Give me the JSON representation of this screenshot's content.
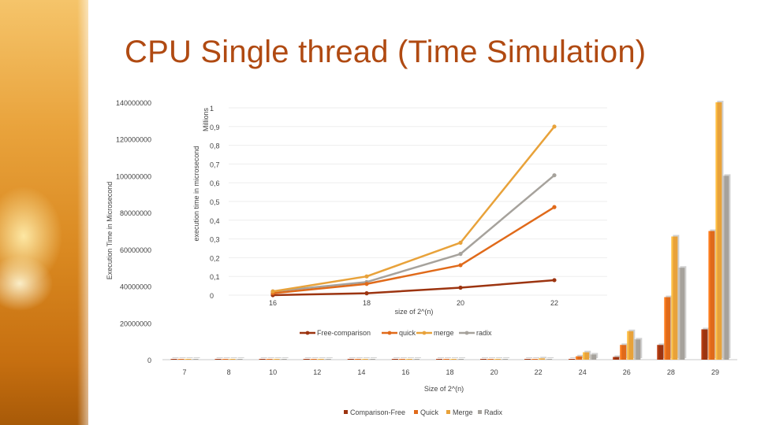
{
  "slide": {
    "title": "CPU Single thread (Time Simulation)"
  },
  "chart_data": [
    {
      "type": "bar",
      "title": "",
      "xlabel": "Size of 2^(n)",
      "ylabel": "Execution Time in Microsecond",
      "ylim": [
        0,
        140000000
      ],
      "yticks": [
        0,
        20000000,
        40000000,
        60000000,
        80000000,
        100000000,
        120000000,
        140000000
      ],
      "ytick_labels": [
        "0",
        "20000000",
        "40000000",
        "60000000",
        "80000000",
        "100000000",
        "120000000",
        "140000000"
      ],
      "categories": [
        "7",
        "8",
        "10",
        "12",
        "14",
        "16",
        "18",
        "20",
        "22",
        "24",
        "26",
        "28",
        "29"
      ],
      "grid": false,
      "legend_position": "bottom",
      "series": [
        {
          "name": "Comparison-Free",
          "color": "#9c3410",
          "values": [
            0,
            0,
            0,
            0,
            0,
            0,
            0,
            10000,
            60000,
            300000,
            1500000,
            8000000,
            16500000
          ]
        },
        {
          "name": "Quick",
          "color": "#e06a1a",
          "values": [
            0,
            0,
            0,
            0,
            0,
            0,
            10000,
            50000,
            200000,
            1800000,
            8000000,
            34000000,
            70000000
          ]
        },
        {
          "name": "Merge",
          "color": "#e8a23a",
          "values": [
            0,
            0,
            0,
            0,
            0,
            0,
            15000,
            90000,
            700000,
            4000000,
            15500000,
            67000000,
            140000000
          ]
        },
        {
          "name": "Radix",
          "color": "#a6a29c",
          "values": [
            0,
            0,
            0,
            0,
            0,
            0,
            12000,
            70000,
            450000,
            2800000,
            11000000,
            50000000,
            100000000
          ]
        }
      ]
    },
    {
      "type": "line",
      "title": "",
      "xlabel": "size of 2^(n)",
      "ylabel": "execution time in microsecond",
      "unit_label": "Millions",
      "x": [
        16,
        18,
        20,
        22
      ],
      "xticks": [
        "16",
        "18",
        "20",
        "22"
      ],
      "ylim": [
        0,
        1
      ],
      "yticks": [
        0,
        0.1,
        0.2,
        0.3,
        0.4,
        0.5,
        0.6,
        0.7,
        0.8,
        0.9,
        1
      ],
      "ytick_labels": [
        "0",
        "0,1",
        "0,2",
        "0,3",
        "0,4",
        "0,5",
        "0,6",
        "0,7",
        "0,8",
        "0,9",
        "1"
      ],
      "grid": true,
      "legend_position": "bottom",
      "series": [
        {
          "name": "Free-comparison",
          "color": "#9c3410",
          "values": [
            0.0,
            0.01,
            0.04,
            0.08
          ]
        },
        {
          "name": "quick",
          "color": "#e06a1a",
          "values": [
            0.01,
            0.06,
            0.16,
            0.47
          ]
        },
        {
          "name": "merge",
          "color": "#e8a23a",
          "values": [
            0.02,
            0.1,
            0.28,
            0.9
          ]
        },
        {
          "name": "radix",
          "color": "#a6a29c",
          "values": [
            0.02,
            0.07,
            0.22,
            0.64
          ]
        }
      ]
    }
  ]
}
